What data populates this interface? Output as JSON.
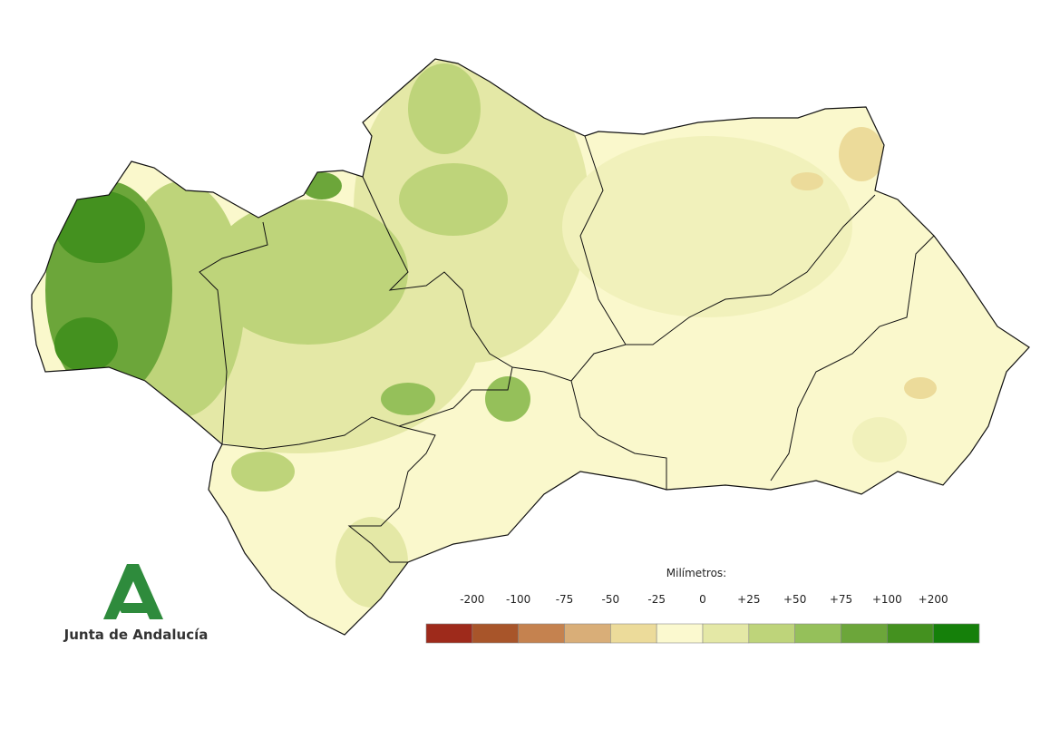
{
  "logo": {
    "text": "Junta de Andalucía"
  },
  "legend": {
    "title": "Milímetros:",
    "labels": [
      "-200",
      "-100",
      "-75",
      "-50",
      "-25",
      "0",
      "+25",
      "+50",
      "+75",
      "+100",
      "+200"
    ],
    "colors": [
      "#9e2a1b",
      "#a8552a",
      "#c5824f",
      "#d9ae78",
      "#ecdb9a",
      "#fbf9cf",
      "#e4e8a6",
      "#bed47a",
      "#95c05a",
      "#6ca63a",
      "#44911f",
      "#15800a"
    ]
  }
}
